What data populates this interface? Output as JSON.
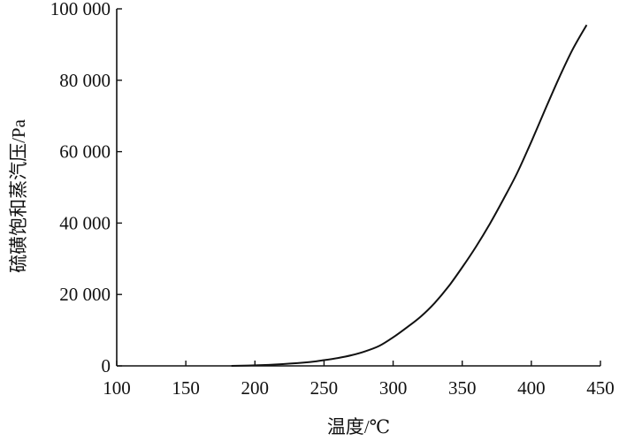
{
  "chart_data": {
    "type": "line",
    "xlabel": "温度/℃",
    "ylabel": "硫磺饱和蒸汽压/Pa",
    "xlim": [
      100,
      450
    ],
    "ylim": [
      0,
      100000
    ],
    "x_ticks": [
      100,
      150,
      200,
      250,
      300,
      350,
      400,
      450
    ],
    "x_tick_labels": [
      "100",
      "150",
      "200",
      "250",
      "300",
      "350",
      "400",
      "450"
    ],
    "y_ticks": [
      0,
      20000,
      40000,
      60000,
      80000,
      100000
    ],
    "y_tick_labels": [
      "0",
      "20 000",
      "40 000",
      "60 000",
      "80 000",
      "100 000"
    ],
    "grid": false,
    "legend": "none",
    "series": [
      {
        "x": [
          183,
          200,
          220,
          240,
          250,
          260,
          270,
          280,
          290,
          300,
          310,
          320,
          330,
          340,
          350,
          360,
          370,
          380,
          390,
          400,
          410,
          420,
          430,
          440
        ],
        "y": [
          0,
          150,
          500,
          1100,
          1600,
          2200,
          3000,
          4100,
          5600,
          8000,
          10800,
          13800,
          17600,
          22200,
          27600,
          33400,
          39800,
          46800,
          54200,
          62800,
          71800,
          80600,
          88700,
          95500
        ]
      }
    ]
  }
}
